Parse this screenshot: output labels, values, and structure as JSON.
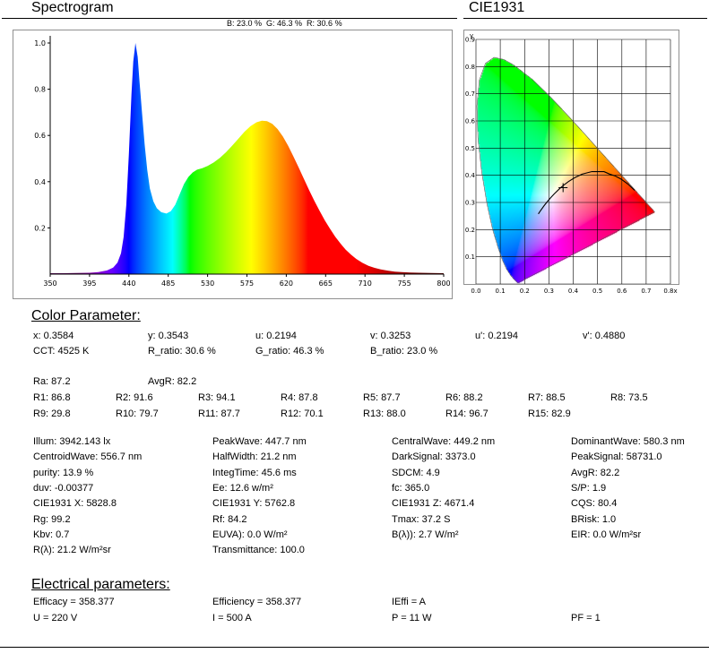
{
  "header": {
    "spectrogram_title": "Spectrogram",
    "cie_title": "CIE1931"
  },
  "spectrogram": {
    "bgr_label": "B: 23.0 %  G: 46.3 %  R: 30.6 %"
  },
  "chart_data": [
    {
      "type": "area",
      "title": "Spectrogram",
      "xlim": [
        350,
        800
      ],
      "ylim": [
        0,
        1.0
      ],
      "x_ticks": [
        350,
        395,
        440,
        485,
        530,
        575,
        620,
        665,
        710,
        755,
        800
      ],
      "y_ticks": [
        0.2,
        0.4,
        0.6,
        0.8,
        1.0
      ],
      "rgb_ratios": {
        "B": 23.0,
        "G": 46.3,
        "R": 30.6
      },
      "spectrum": [
        [
          350,
          0.004
        ],
        [
          365,
          0.004
        ],
        [
          380,
          0.005
        ],
        [
          395,
          0.006
        ],
        [
          405,
          0.009
        ],
        [
          415,
          0.016
        ],
        [
          422,
          0.028
        ],
        [
          427,
          0.05
        ],
        [
          431,
          0.09
        ],
        [
          434,
          0.16
        ],
        [
          437,
          0.3
        ],
        [
          440,
          0.52
        ],
        [
          443,
          0.78
        ],
        [
          445,
          0.92
        ],
        [
          447.5,
          1.0
        ],
        [
          450,
          0.94
        ],
        [
          452,
          0.84
        ],
        [
          455,
          0.7
        ],
        [
          458,
          0.56
        ],
        [
          461,
          0.45
        ],
        [
          464,
          0.37
        ],
        [
          468,
          0.315
        ],
        [
          472,
          0.285
        ],
        [
          477,
          0.268
        ],
        [
          483,
          0.262
        ],
        [
          488,
          0.272
        ],
        [
          493,
          0.3
        ],
        [
          498,
          0.345
        ],
        [
          503,
          0.39
        ],
        [
          508,
          0.42
        ],
        [
          513,
          0.44
        ],
        [
          518,
          0.452
        ],
        [
          524,
          0.458
        ],
        [
          530,
          0.468
        ],
        [
          537,
          0.483
        ],
        [
          544,
          0.503
        ],
        [
          551,
          0.527
        ],
        [
          558,
          0.555
        ],
        [
          565,
          0.585
        ],
        [
          572,
          0.615
        ],
        [
          579,
          0.64
        ],
        [
          586,
          0.657
        ],
        [
          592,
          0.664
        ],
        [
          598,
          0.662
        ],
        [
          604,
          0.65
        ],
        [
          610,
          0.628
        ],
        [
          616,
          0.596
        ],
        [
          622,
          0.556
        ],
        [
          628,
          0.51
        ],
        [
          634,
          0.462
        ],
        [
          640,
          0.413
        ],
        [
          646,
          0.364
        ],
        [
          652,
          0.318
        ],
        [
          658,
          0.274
        ],
        [
          664,
          0.233
        ],
        [
          670,
          0.196
        ],
        [
          676,
          0.162
        ],
        [
          682,
          0.132
        ],
        [
          688,
          0.106
        ],
        [
          694,
          0.084
        ],
        [
          700,
          0.066
        ],
        [
          707,
          0.049
        ],
        [
          714,
          0.036
        ],
        [
          721,
          0.027
        ],
        [
          728,
          0.02
        ],
        [
          736,
          0.015
        ],
        [
          744,
          0.011
        ],
        [
          752,
          0.009
        ],
        [
          762,
          0.007
        ],
        [
          772,
          0.006
        ],
        [
          785,
          0.005
        ],
        [
          800,
          0.004
        ]
      ]
    },
    {
      "type": "scatter",
      "title": "CIE1931",
      "xlim": [
        0,
        0.8
      ],
      "ylim": [
        0,
        0.9
      ],
      "x_tick_labels": [
        "0.0",
        "0.1",
        "0.2",
        "0.3",
        "0.4",
        "0.5",
        "0.6",
        "0.7",
        "0.8x"
      ],
      "y_tick_labels": [
        "0.1",
        "0.2",
        "0.3",
        "0.4",
        "0.5",
        "0.6",
        "0.7",
        "0.8",
        "0.9"
      ],
      "y_axis_label": "y",
      "point": {
        "x": 0.3584,
        "y": 0.3543
      },
      "planckian_locus": [
        [
          0.6528,
          0.3444
        ],
        [
          0.6251,
          0.3675
        ],
        [
          0.5985,
          0.3849
        ],
        [
          0.5732,
          0.3971
        ],
        [
          0.5493,
          0.4045
        ],
        [
          0.5267,
          0.4133
        ],
        [
          0.477,
          0.4137
        ],
        [
          0.4369,
          0.4041
        ],
        [
          0.4053,
          0.3907
        ],
        [
          0.3805,
          0.3768
        ],
        [
          0.3608,
          0.3636
        ],
        [
          0.3451,
          0.3516
        ],
        [
          0.3221,
          0.3318
        ],
        [
          0.3064,
          0.3166
        ],
        [
          0.2952,
          0.3048
        ],
        [
          0.2807,
          0.2884
        ],
        [
          0.2637,
          0.2673
        ],
        [
          0.2565,
          0.2577
        ]
      ],
      "spectral_locus": [
        [
          0.1741,
          0.005
        ],
        [
          0.1738,
          0.0049
        ],
        [
          0.1733,
          0.0048
        ],
        [
          0.1726,
          0.0048
        ],
        [
          0.1714,
          0.0051
        ],
        [
          0.1689,
          0.0069
        ],
        [
          0.1644,
          0.0109
        ],
        [
          0.1566,
          0.0177
        ],
        [
          0.144,
          0.0297
        ],
        [
          0.1241,
          0.0578
        ],
        [
          0.1096,
          0.0868
        ],
        [
          0.0913,
          0.1327
        ],
        [
          0.0687,
          0.2007
        ],
        [
          0.0454,
          0.295
        ],
        [
          0.0235,
          0.4127
        ],
        [
          0.0082,
          0.5384
        ],
        [
          0.0039,
          0.6548
        ],
        [
          0.0139,
          0.7502
        ],
        [
          0.0389,
          0.812
        ],
        [
          0.0743,
          0.8338
        ],
        [
          0.1142,
          0.8262
        ],
        [
          0.1547,
          0.8059
        ],
        [
          0.2296,
          0.7543
        ],
        [
          0.3016,
          0.6923
        ],
        [
          0.3731,
          0.6245
        ],
        [
          0.4441,
          0.5547
        ],
        [
          0.5125,
          0.4866
        ],
        [
          0.5752,
          0.4242
        ],
        [
          0.627,
          0.3725
        ],
        [
          0.6658,
          0.334
        ],
        [
          0.6915,
          0.3083
        ],
        [
          0.7079,
          0.292
        ],
        [
          0.719,
          0.2809
        ],
        [
          0.726,
          0.274
        ],
        [
          0.73,
          0.27
        ],
        [
          0.7334,
          0.2666
        ],
        [
          0.7347,
          0.2653
        ]
      ]
    }
  ],
  "color_parameters": {
    "heading": "Color Parameter:",
    "row_xyuv": [
      "x: 0.3584",
      "y: 0.3543",
      "u: 0.2194",
      "v: 0.3253",
      "u': 0.2194",
      "v': 0.4880"
    ],
    "row_cct": [
      "CCT: 4525 K",
      "R_ratio: 30.6 %",
      "G_ratio: 46.3 %",
      "B_ratio: 23.0 %"
    ],
    "row_ra": [
      "Ra: 87.2",
      "AvgR: 82.2"
    ],
    "row_r1_8": [
      "R1: 86.8",
      "R2: 91.6",
      "R3: 94.1",
      "R4: 87.8",
      "R5: 87.7",
      "R6: 88.2",
      "R7: 88.5",
      "R8: 73.5"
    ],
    "row_r9_15": [
      "R9: 29.8",
      "R10: 79.7",
      "R11: 87.7",
      "R12: 70.1",
      "R13: 88.0",
      "R14: 96.7",
      "R15: 82.9"
    ],
    "grid": [
      [
        "Illum: 3942.143 lx",
        "PeakWave: 447.7 nm",
        "CentralWave: 449.2 nm",
        "DominantWave: 580.3 nm"
      ],
      [
        "CentroidWave: 556.7 nm",
        "HalfWidth: 21.2 nm",
        "DarkSignal: 3373.0",
        "PeakSignal: 58731.0"
      ],
      [
        "purity: 13.9 %",
        "IntegTime: 45.6 ms",
        "SDCM: 4.9",
        "AvgR: 82.2"
      ],
      [
        "duv: -0.00377",
        "Ee: 12.6 w/m²",
        "fc: 365.0",
        "S/P: 1.9"
      ],
      [
        "CIE1931 X: 5828.8",
        "CIE1931 Y: 5762.8",
        "CIE1931 Z: 4671.4",
        "CQS: 80.4"
      ],
      [
        "Rg: 99.2",
        "Rf: 84.2",
        "Tmax: 37.2 S",
        "BRisk: 1.0"
      ],
      [
        "Kbv: 0.7",
        "EUVA): 0.0 W/m²",
        "B(λ)): 2.7 W/m²",
        "EIR: 0.0 W/m²sr"
      ],
      [
        "R(λ): 21.2 W/m²sr",
        "Transmittance: 100.0"
      ]
    ]
  },
  "electrical_parameters": {
    "heading": "Electrical parameters:",
    "rows": [
      [
        "Efficacy = 358.377",
        "Efficiency = 358.377",
        "IEffi = A"
      ],
      [
        "U = 220 V",
        "I = 500 A",
        "P = 11 W",
        "PF = 1"
      ]
    ]
  }
}
